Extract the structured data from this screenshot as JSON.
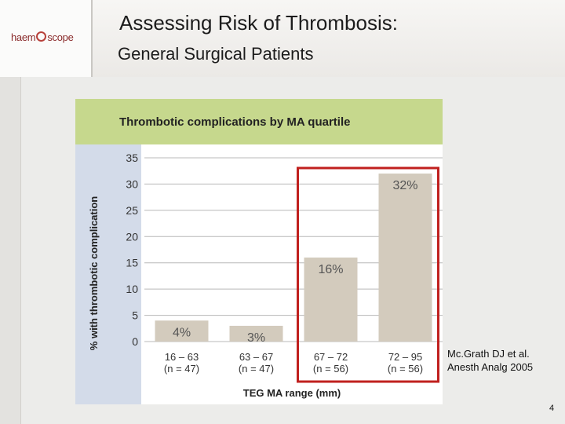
{
  "slide": {
    "title": "Assessing Risk of Thrombosis:",
    "subtitle": "General Surgical Patients",
    "logo_text": [
      "haem",
      "scope"
    ],
    "citation_line1": "Mc.Grath DJ et al.",
    "citation_line2": "Anesth Analg 2005",
    "page_number": "4"
  },
  "chart_data": {
    "type": "bar",
    "title": "Thrombotic complications by MA quartile",
    "xlabel": "TEG MA range (mm)",
    "ylabel": "% with thrombotic complication",
    "ylim": [
      0,
      35
    ],
    "yticks": [
      0,
      5,
      10,
      15,
      20,
      25,
      30,
      35
    ],
    "grid": true,
    "categories": [
      "16 – 63",
      "63 – 67",
      "67 – 72",
      "72 – 95"
    ],
    "category_counts": [
      "(n = 47)",
      "(n = 47)",
      "(n = 56)",
      "(n = 56)"
    ],
    "values": [
      4,
      3,
      16,
      32
    ],
    "data_labels": [
      "4%",
      "3%",
      "16%",
      "32%"
    ],
    "highlighted_categories": [
      "67 – 72",
      "72 – 95"
    ],
    "colors": {
      "title_band": "#c6d88d",
      "ylabel_band": "#d3dbe9",
      "plot_background": "#ffffff",
      "bar": "#d3cbbd",
      "highlight_box": "#c0201e",
      "gridline": "#b8b8b8"
    }
  }
}
